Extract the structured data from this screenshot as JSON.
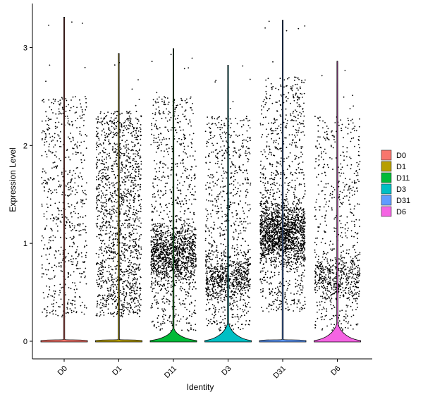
{
  "chart_data": {
    "type": "violin",
    "title": "",
    "xlabel": "Identity",
    "ylabel": "Expression Level",
    "ylim": [
      -0.18,
      3.45
    ],
    "y_ticks": [
      0,
      1,
      2,
      3
    ],
    "grid": false,
    "legend_position": "right",
    "categories": [
      "D0",
      "D1",
      "D11",
      "D3",
      "D31",
      "D6"
    ],
    "series": [
      {
        "name": "D0",
        "color": "#F8766D",
        "max": 3.31,
        "nonzero_points_approx": 650,
        "nonzero_range": [
          0.25,
          2.5
        ],
        "zero_fraction_note": "mostly zeros"
      },
      {
        "name": "D1",
        "color": "#B79F00",
        "max": 2.94,
        "nonzero_points_approx": 1500,
        "nonzero_range": [
          0.25,
          2.35
        ],
        "zero_fraction_note": "mostly zeros"
      },
      {
        "name": "D11",
        "color": "#00BA38",
        "max": 2.99,
        "nonzero_points_approx": 1700,
        "nonzero_range": [
          0.1,
          2.5
        ],
        "zero_bulge": 0.35
      },
      {
        "name": "D3",
        "color": "#00BFC4",
        "max": 2.82,
        "nonzero_points_approx": 1300,
        "nonzero_range": [
          0.1,
          2.3
        ],
        "zero_bulge": 0.5
      },
      {
        "name": "D31",
        "color": "#619CFF",
        "max": 3.28,
        "nonzero_points_approx": 2200,
        "nonzero_range": [
          0.3,
          2.7
        ],
        "zero_fraction_note": "mostly zeros"
      },
      {
        "name": "D6",
        "color": "#F564E3",
        "max": 2.86,
        "nonzero_points_approx": 900,
        "nonzero_range": [
          0.1,
          2.3
        ],
        "zero_bulge": 0.55
      }
    ],
    "legend": [
      {
        "label": "D0",
        "color": "#F8766D"
      },
      {
        "label": "D1",
        "color": "#B79F00"
      },
      {
        "label": "D11",
        "color": "#00BA38"
      },
      {
        "label": "D3",
        "color": "#00BFC4"
      },
      {
        "label": "D31",
        "color": "#619CFF"
      },
      {
        "label": "D6",
        "color": "#F564E3"
      }
    ]
  }
}
